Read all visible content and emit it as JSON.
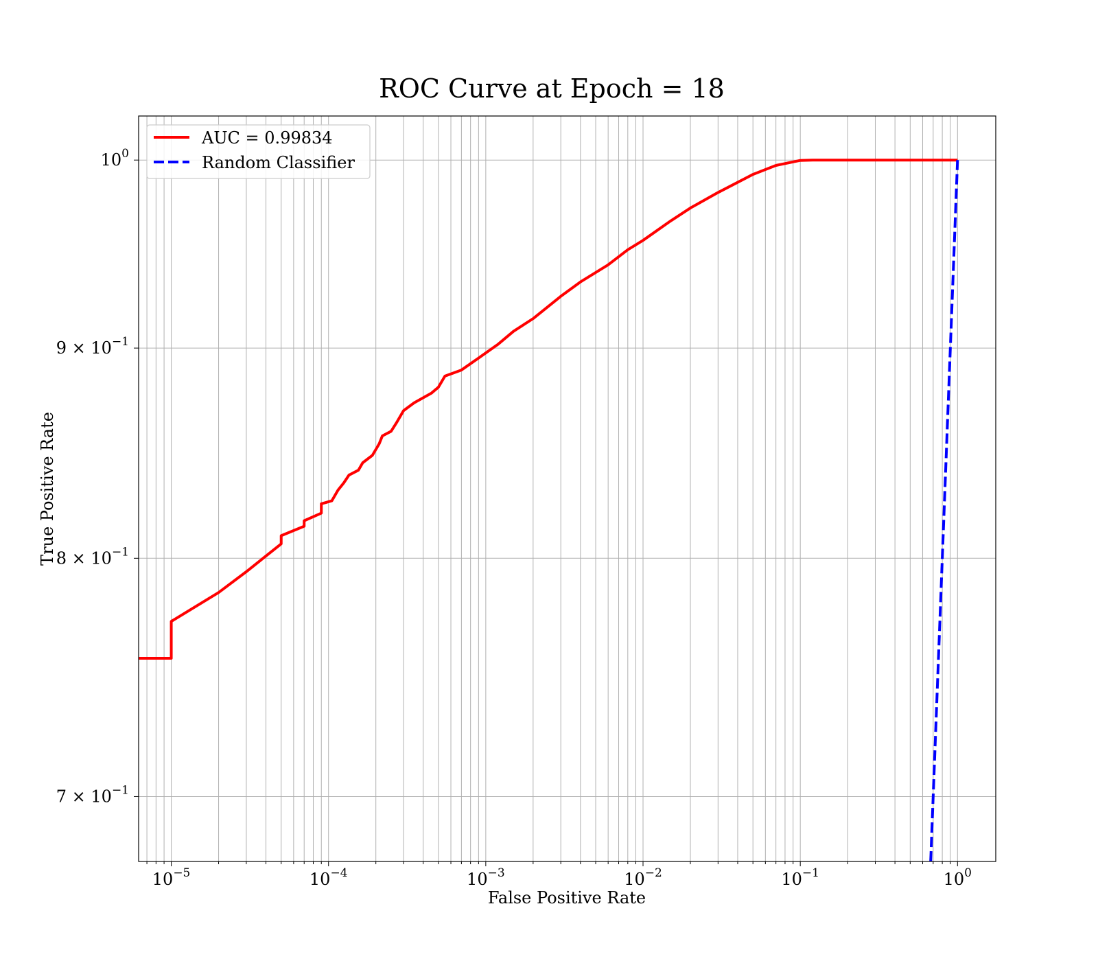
{
  "chart_data": {
    "type": "line",
    "title": "ROC Curve at Epoch = 18",
    "xlabel": "False Positive Rate",
    "ylabel": "True Positive Rate",
    "x_scale": "log",
    "y_scale": "log",
    "xlim": [
      6.2e-06,
      1.75
    ],
    "ylim": [
      0.675,
      1.025
    ],
    "grid": true,
    "legend_position": "upper-left",
    "x_ticks": [
      {
        "value": 1e-05,
        "base": "10",
        "exp": "−5"
      },
      {
        "value": 0.0001,
        "base": "10",
        "exp": "−4"
      },
      {
        "value": 0.001,
        "base": "10",
        "exp": "−3"
      },
      {
        "value": 0.01,
        "base": "10",
        "exp": "−2"
      },
      {
        "value": 0.1,
        "base": "10",
        "exp": "−1"
      },
      {
        "value": 1,
        "base": "10",
        "exp": "0"
      }
    ],
    "y_ticks": [
      {
        "value": 1.0,
        "base": "10",
        "exp": "0"
      },
      {
        "value": 0.9,
        "base": "9 × 10",
        "exp": "−1"
      },
      {
        "value": 0.8,
        "base": "8 × 10",
        "exp": "−1"
      },
      {
        "value": 0.7,
        "base": "7 × 10",
        "exp": "−1"
      }
    ],
    "series": [
      {
        "name": "AUC = 0.99834",
        "color": "#ff0000",
        "style": "solid",
        "points": [
          [
            6.2e-06,
            0.7564
          ],
          [
            1e-05,
            0.7564
          ],
          [
            1e-05,
            0.7722
          ],
          [
            2e-05,
            0.7848
          ],
          [
            3e-05,
            0.794
          ],
          [
            5e-05,
            0.8065
          ],
          [
            5e-05,
            0.8102
          ],
          [
            7e-05,
            0.8145
          ],
          [
            7e-05,
            0.817
          ],
          [
            9e-05,
            0.8205
          ],
          [
            9e-05,
            0.8248
          ],
          [
            0.000105,
            0.8262
          ],
          [
            0.000115,
            0.8312
          ],
          [
            0.000125,
            0.8345
          ],
          [
            0.000135,
            0.8382
          ],
          [
            0.000155,
            0.8405
          ],
          [
            0.000165,
            0.844
          ],
          [
            0.00019,
            0.8475
          ],
          [
            0.00021,
            0.853
          ],
          [
            0.00022,
            0.8568
          ],
          [
            0.00025,
            0.859
          ],
          [
            0.00027,
            0.863
          ],
          [
            0.0003,
            0.869
          ],
          [
            0.00035,
            0.8728
          ],
          [
            0.00045,
            0.8775
          ],
          [
            0.0005,
            0.8805
          ],
          [
            0.00055,
            0.886
          ],
          [
            0.0007,
            0.889
          ],
          [
            0.0009,
            0.895
          ],
          [
            0.0012,
            0.902
          ],
          [
            0.0015,
            0.9085
          ],
          [
            0.002,
            0.915
          ],
          [
            0.003,
            0.9265
          ],
          [
            0.004,
            0.934
          ],
          [
            0.006,
            0.943
          ],
          [
            0.008,
            0.951
          ],
          [
            0.01,
            0.956
          ],
          [
            0.015,
            0.9665
          ],
          [
            0.02,
            0.9735
          ],
          [
            0.03,
            0.982
          ],
          [
            0.05,
            0.992
          ],
          [
            0.07,
            0.997
          ],
          [
            0.1,
            0.9998
          ],
          [
            0.12,
            1.0
          ],
          [
            1.0,
            1.0
          ]
        ]
      },
      {
        "name": "Random Classifier",
        "color": "#0000ff",
        "style": "dashed",
        "points": [
          [
            0.675,
            0.675
          ],
          [
            1.0,
            1.0
          ]
        ]
      }
    ]
  }
}
